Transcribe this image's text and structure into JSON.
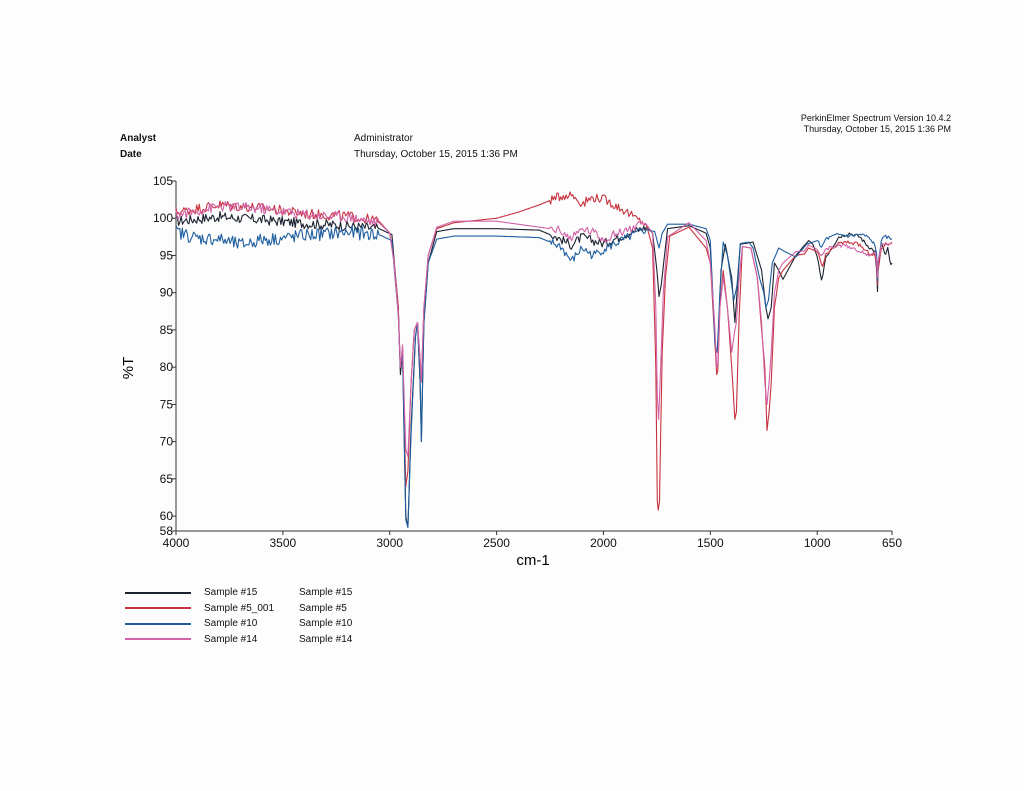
{
  "header": {
    "software": "PerkinElmer Spectrum Version 10.4.2",
    "print_date": "Thursday, October 15, 2015 1:36 PM",
    "analyst_label": "Analyst",
    "analyst_value": "Administrator",
    "date_label": "Date",
    "date_value": "Thursday, October 15, 2015 1:36 PM"
  },
  "legend": [
    {
      "name": "Sample #15",
      "desc": "Sample #15",
      "color": "#1c2230"
    },
    {
      "name": "Sample #5_001",
      "desc": "Sample #5",
      "color": "#c8323f"
    },
    {
      "name": "Sample #10",
      "desc": "Sample #10",
      "color": "#1f5fa0"
    },
    {
      "name": "Sample #14",
      "desc": "Sample #14",
      "color": "#d163a8"
    }
  ],
  "chart_data": {
    "type": "line",
    "title": "",
    "xlabel": "cm-1",
    "ylabel": "%T",
    "xlim": [
      4000,
      650
    ],
    "ylim": [
      58,
      105
    ],
    "x_ticks": [
      4000,
      3500,
      3000,
      2500,
      2000,
      1500,
      1000,
      650
    ],
    "y_ticks": [
      58,
      60,
      65,
      70,
      75,
      80,
      85,
      90,
      95,
      100,
      105
    ],
    "grid": false,
    "series": [
      {
        "name": "Sample #15",
        "color": "#1c2230",
        "points": [
          [
            4000,
            99.6
          ],
          [
            3800,
            100.2
          ],
          [
            3600,
            99.8
          ],
          [
            3400,
            99.3
          ],
          [
            3200,
            99
          ],
          [
            3050,
            98.6
          ],
          [
            2990,
            97.8
          ],
          [
            2960,
            88
          ],
          [
            2950,
            79
          ],
          [
            2940,
            82
          ],
          [
            2925,
            60
          ],
          [
            2915,
            58.5
          ],
          [
            2900,
            72
          ],
          [
            2880,
            84
          ],
          [
            2870,
            86
          ],
          [
            2858,
            78
          ],
          [
            2852,
            70
          ],
          [
            2840,
            86
          ],
          [
            2820,
            94
          ],
          [
            2780,
            98.2
          ],
          [
            2700,
            98.6
          ],
          [
            2500,
            98.6
          ],
          [
            2300,
            98.4
          ],
          [
            2200,
            97.2
          ],
          [
            2150,
            96.4
          ],
          [
            2100,
            97.5
          ],
          [
            2050,
            97
          ],
          [
            2000,
            96.6
          ],
          [
            1900,
            97.8
          ],
          [
            1800,
            98.8
          ],
          [
            1770,
            98
          ],
          [
            1750,
            93
          ],
          [
            1740,
            89.5
          ],
          [
            1730,
            91
          ],
          [
            1700,
            98.6
          ],
          [
            1600,
            99
          ],
          [
            1520,
            98
          ],
          [
            1500,
            96
          ],
          [
            1475,
            82
          ],
          [
            1465,
            82.5
          ],
          [
            1450,
            93
          ],
          [
            1430,
            96.5
          ],
          [
            1400,
            92
          ],
          [
            1385,
            86
          ],
          [
            1375,
            90
          ],
          [
            1360,
            96.5
          ],
          [
            1300,
            96.8
          ],
          [
            1260,
            93
          ],
          [
            1240,
            88
          ],
          [
            1230,
            86.5
          ],
          [
            1215,
            88
          ],
          [
            1200,
            94
          ],
          [
            1180,
            93
          ],
          [
            1160,
            91.8
          ],
          [
            1100,
            95
          ],
          [
            1040,
            97
          ],
          [
            1020,
            96.5
          ],
          [
            1000,
            94.8
          ],
          [
            980,
            91.5
          ],
          [
            960,
            94.8
          ],
          [
            900,
            97.5
          ],
          [
            850,
            98
          ],
          [
            800,
            97.5
          ],
          [
            770,
            96.5
          ],
          [
            730,
            95.5
          ],
          [
            722,
            93
          ],
          [
            718,
            90
          ],
          [
            715,
            93
          ],
          [
            700,
            96.5
          ],
          [
            690,
            95.8
          ],
          [
            680,
            95
          ],
          [
            670,
            96
          ],
          [
            660,
            94
          ],
          [
            650,
            94
          ]
        ]
      },
      {
        "name": "Sample #5_001",
        "color": "#c8323f",
        "points": [
          [
            4000,
            100.8
          ],
          [
            3800,
            101.8
          ],
          [
            3600,
            101.4
          ],
          [
            3400,
            100.6
          ],
          [
            3200,
            100.3
          ],
          [
            3050,
            99.6
          ],
          [
            3000,
            98
          ],
          [
            2980,
            94.2
          ],
          [
            2960,
            88
          ],
          [
            2950,
            80
          ],
          [
            2940,
            82.5
          ],
          [
            2925,
            64
          ],
          [
            2915,
            66
          ],
          [
            2900,
            78
          ],
          [
            2885,
            85
          ],
          [
            2870,
            86
          ],
          [
            2858,
            81
          ],
          [
            2852,
            78
          ],
          [
            2840,
            88
          ],
          [
            2820,
            95
          ],
          [
            2780,
            98.6
          ],
          [
            2700,
            99.4
          ],
          [
            2500,
            100
          ],
          [
            2400,
            100.8
          ],
          [
            2300,
            101.8
          ],
          [
            2200,
            103
          ],
          [
            2150,
            103.2
          ],
          [
            2100,
            102
          ],
          [
            2050,
            102.8
          ],
          [
            2000,
            102.6
          ],
          [
            1900,
            101
          ],
          [
            1850,
            100
          ],
          [
            1800,
            99.2
          ],
          [
            1770,
            96
          ],
          [
            1755,
            80
          ],
          [
            1748,
            62
          ],
          [
            1744,
            60.8
          ],
          [
            1738,
            62
          ],
          [
            1725,
            82
          ],
          [
            1710,
            92
          ],
          [
            1690,
            97.6
          ],
          [
            1600,
            98.8
          ],
          [
            1520,
            96
          ],
          [
            1500,
            94
          ],
          [
            1480,
            84
          ],
          [
            1470,
            79
          ],
          [
            1465,
            79.5
          ],
          [
            1455,
            88
          ],
          [
            1440,
            93
          ],
          [
            1420,
            88
          ],
          [
            1400,
            80
          ],
          [
            1385,
            73
          ],
          [
            1378,
            74
          ],
          [
            1365,
            87
          ],
          [
            1350,
            96.2
          ],
          [
            1310,
            96
          ],
          [
            1280,
            92
          ],
          [
            1260,
            85
          ],
          [
            1245,
            80
          ],
          [
            1235,
            71.5
          ],
          [
            1225,
            74
          ],
          [
            1215,
            78
          ],
          [
            1200,
            88
          ],
          [
            1180,
            92
          ],
          [
            1160,
            93
          ],
          [
            1100,
            95
          ],
          [
            1060,
            95.2
          ],
          [
            1040,
            96
          ],
          [
            1000,
            95.5
          ],
          [
            975,
            93.5
          ],
          [
            960,
            95
          ],
          [
            900,
            96.6
          ],
          [
            850,
            96.8
          ],
          [
            800,
            96.4
          ],
          [
            770,
            95.5
          ],
          [
            730,
            95
          ],
          [
            722,
            94
          ],
          [
            718,
            91
          ],
          [
            715,
            93
          ],
          [
            700,
            96
          ],
          [
            680,
            96.5
          ],
          [
            650,
            96.8
          ]
        ]
      },
      {
        "name": "Sample #10",
        "color": "#1f5fa0",
        "points": [
          [
            4000,
            98.2
          ],
          [
            3900,
            97.3
          ],
          [
            3800,
            97.2
          ],
          [
            3700,
            96.4
          ],
          [
            3600,
            97.1
          ],
          [
            3500,
            97.3
          ],
          [
            3400,
            97.7
          ],
          [
            3200,
            98.1
          ],
          [
            3050,
            97.8
          ],
          [
            2990,
            97
          ],
          [
            2960,
            87
          ],
          [
            2950,
            80
          ],
          [
            2940,
            82
          ],
          [
            2925,
            59.5
          ],
          [
            2915,
            58.5
          ],
          [
            2900,
            71
          ],
          [
            2880,
            84
          ],
          [
            2870,
            86
          ],
          [
            2858,
            78
          ],
          [
            2852,
            70
          ],
          [
            2840,
            86
          ],
          [
            2820,
            94
          ],
          [
            2780,
            97.2
          ],
          [
            2700,
            97.6
          ],
          [
            2500,
            97.6
          ],
          [
            2300,
            97.4
          ],
          [
            2250,
            96.8
          ],
          [
            2200,
            96.2
          ],
          [
            2150,
            94.2
          ],
          [
            2100,
            96
          ],
          [
            2050,
            95
          ],
          [
            2000,
            95.8
          ],
          [
            1900,
            97.2
          ],
          [
            1800,
            98.5
          ],
          [
            1760,
            98.2
          ],
          [
            1740,
            96
          ],
          [
            1725,
            98
          ],
          [
            1700,
            99.2
          ],
          [
            1600,
            99.2
          ],
          [
            1520,
            98.6
          ],
          [
            1500,
            97
          ],
          [
            1478,
            83
          ],
          [
            1468,
            82
          ],
          [
            1455,
            90
          ],
          [
            1440,
            96.8
          ],
          [
            1420,
            95
          ],
          [
            1400,
            91
          ],
          [
            1390,
            89
          ],
          [
            1375,
            91
          ],
          [
            1360,
            96.6
          ],
          [
            1320,
            96.8
          ],
          [
            1300,
            96
          ],
          [
            1270,
            92
          ],
          [
            1250,
            90
          ],
          [
            1240,
            88
          ],
          [
            1228,
            89
          ],
          [
            1210,
            94
          ],
          [
            1180,
            96
          ],
          [
            1150,
            95.5
          ],
          [
            1100,
            94.8
          ],
          [
            1050,
            96.5
          ],
          [
            1000,
            97
          ],
          [
            980,
            96
          ],
          [
            960,
            97.2
          ],
          [
            900,
            97.8
          ],
          [
            850,
            97.6
          ],
          [
            800,
            97.8
          ],
          [
            770,
            97.6
          ],
          [
            730,
            96.5
          ],
          [
            722,
            95
          ],
          [
            718,
            91.5
          ],
          [
            715,
            94
          ],
          [
            700,
            97
          ],
          [
            680,
            97.5
          ],
          [
            650,
            97.2
          ]
        ]
      },
      {
        "name": "Sample #14",
        "color": "#d163a8",
        "points": [
          [
            4000,
            100.4
          ],
          [
            3800,
            101.6
          ],
          [
            3600,
            101.3
          ],
          [
            3400,
            100.5
          ],
          [
            3200,
            100.2
          ],
          [
            3050,
            99.4
          ],
          [
            3000,
            98
          ],
          [
            2980,
            94
          ],
          [
            2960,
            87
          ],
          [
            2950,
            80
          ],
          [
            2940,
            83
          ],
          [
            2925,
            69
          ],
          [
            2915,
            68
          ],
          [
            2900,
            78
          ],
          [
            2885,
            85
          ],
          [
            2870,
            86
          ],
          [
            2858,
            81
          ],
          [
            2852,
            78
          ],
          [
            2840,
            88
          ],
          [
            2820,
            95
          ],
          [
            2780,
            98.8
          ],
          [
            2700,
            99.6
          ],
          [
            2500,
            99.6
          ],
          [
            2300,
            98.8
          ],
          [
            2200,
            98.4
          ],
          [
            2150,
            97.2
          ],
          [
            2100,
            98.6
          ],
          [
            2050,
            98.2
          ],
          [
            2000,
            97.2
          ],
          [
            1900,
            98.4
          ],
          [
            1800,
            99.2
          ],
          [
            1770,
            98
          ],
          [
            1755,
            88
          ],
          [
            1748,
            76
          ],
          [
            1742,
            73
          ],
          [
            1735,
            78
          ],
          [
            1720,
            90
          ],
          [
            1700,
            97.5
          ],
          [
            1600,
            99.4
          ],
          [
            1520,
            97
          ],
          [
            1500,
            94
          ],
          [
            1480,
            86
          ],
          [
            1470,
            80
          ],
          [
            1465,
            80.5
          ],
          [
            1455,
            88
          ],
          [
            1440,
            92
          ],
          [
            1420,
            88
          ],
          [
            1400,
            82
          ],
          [
            1385,
            85
          ],
          [
            1378,
            86
          ],
          [
            1365,
            92
          ],
          [
            1350,
            96.2
          ],
          [
            1310,
            96
          ],
          [
            1280,
            92
          ],
          [
            1260,
            86
          ],
          [
            1245,
            78
          ],
          [
            1235,
            75
          ],
          [
            1225,
            78
          ],
          [
            1215,
            82
          ],
          [
            1200,
            90
          ],
          [
            1180,
            93
          ],
          [
            1160,
            94
          ],
          [
            1100,
            95.5
          ],
          [
            1060,
            95.6
          ],
          [
            1040,
            96.4
          ],
          [
            1000,
            95.8
          ],
          [
            975,
            95
          ],
          [
            960,
            95.8
          ],
          [
            900,
            96.4
          ],
          [
            850,
            96.2
          ],
          [
            800,
            95.6
          ],
          [
            770,
            95
          ],
          [
            730,
            95.5
          ],
          [
            722,
            94.5
          ],
          [
            718,
            92
          ],
          [
            715,
            94
          ],
          [
            700,
            96.4
          ],
          [
            680,
            96.5
          ],
          [
            650,
            96.6
          ]
        ]
      }
    ]
  }
}
